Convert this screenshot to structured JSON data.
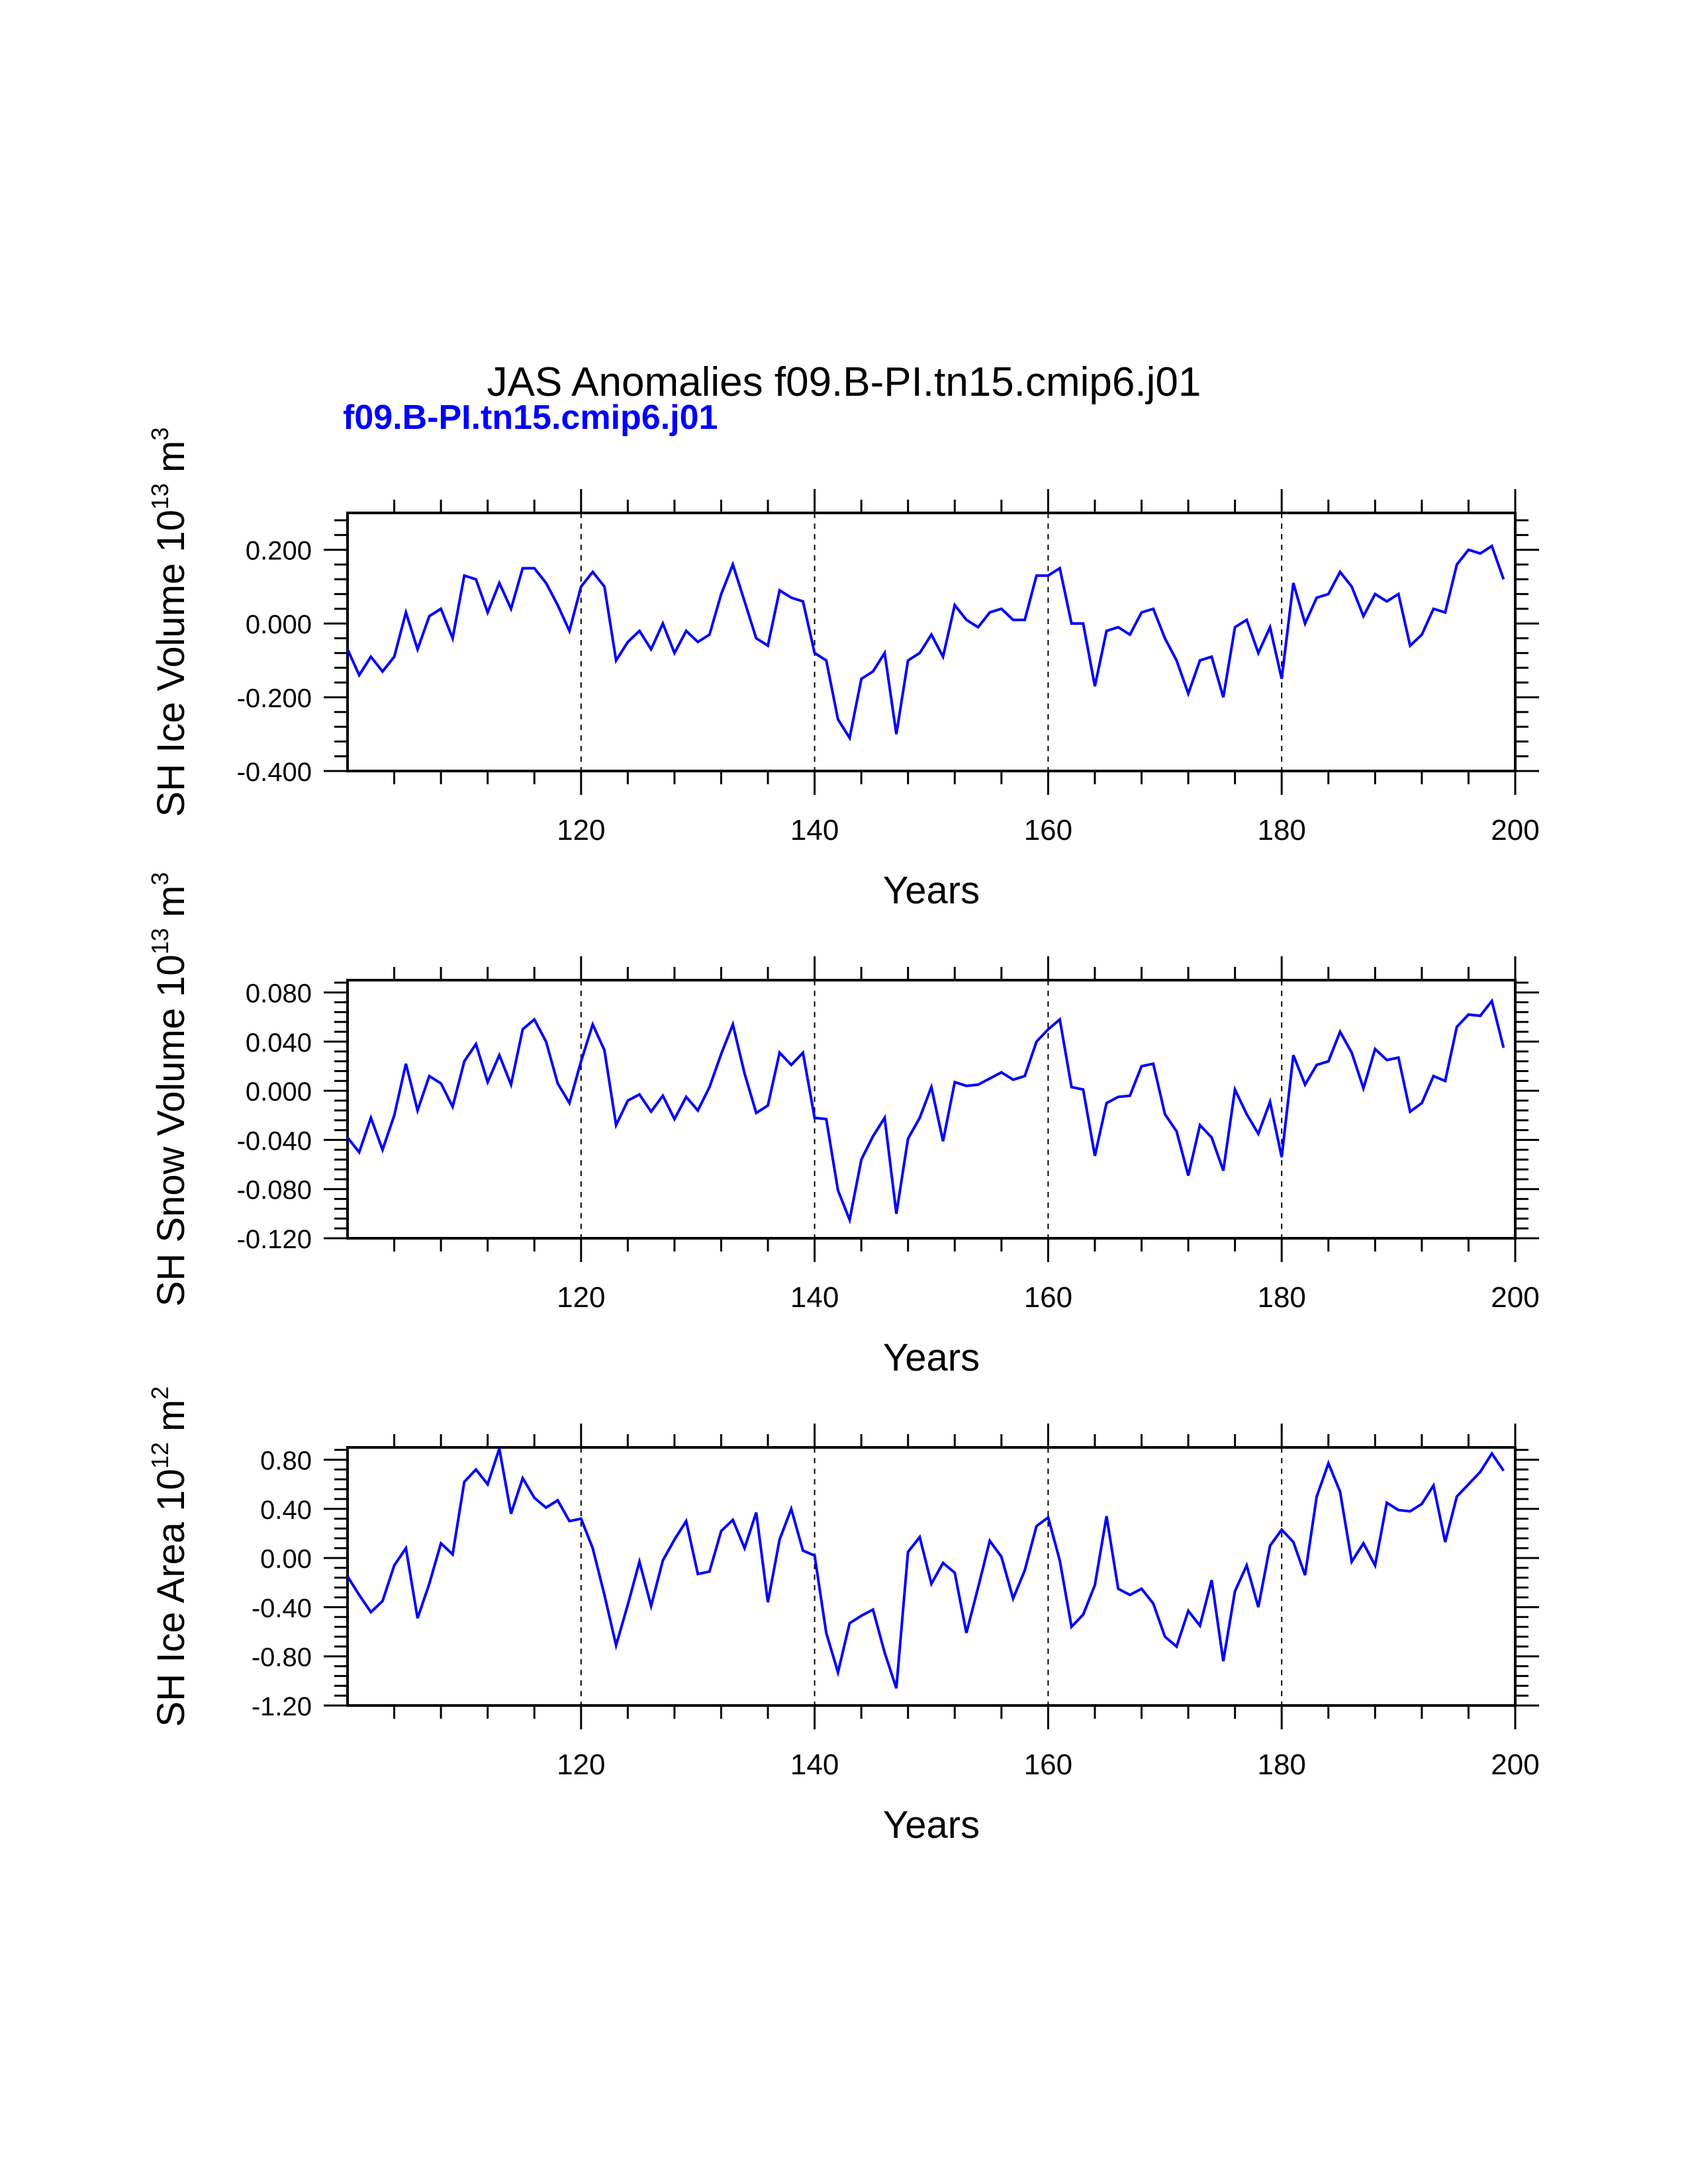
{
  "main_title": "JAS Anomalies f09.B-PI.tn15.cmip6.j01",
  "case_label": "f09.B-PI.tn15.cmip6.j01",
  "colors": {
    "line": "#0000ff",
    "axis": "#000000",
    "case_label": "#0000ff"
  },
  "chart_data": [
    {
      "type": "line",
      "ylabel_main": "SH Ice Volume 10",
      "ylabel_exp": "13",
      "ylabel_unit": " m",
      "ylabel_unit_exp": "3",
      "xlabel": "Years",
      "xlim": [
        100,
        200
      ],
      "ylim": [
        -0.4,
        0.3
      ],
      "yticks": [
        -0.4,
        -0.2,
        0.0,
        0.2
      ],
      "ytick_labels": [
        "-0.400",
        "-0.200",
        "0.000",
        "0.200"
      ],
      "xticks": [
        120,
        140,
        160,
        180,
        200
      ],
      "xtick_labels": [
        "120",
        "140",
        "160",
        "180",
        "200"
      ],
      "grid": "vertical dashed lines at 120, 140, 160, 180",
      "x_start": 100,
      "values": [
        -0.07,
        -0.14,
        -0.09,
        -0.13,
        -0.09,
        0.03,
        -0.07,
        0.02,
        0.04,
        -0.04,
        0.13,
        0.12,
        0.03,
        0.11,
        0.04,
        0.15,
        0.15,
        0.11,
        0.05,
        -0.02,
        0.1,
        0.14,
        0.1,
        -0.1,
        -0.05,
        -0.02,
        -0.07,
        0.0,
        -0.08,
        -0.02,
        -0.05,
        -0.03,
        0.08,
        0.16,
        0.06,
        -0.04,
        -0.06,
        0.09,
        0.07,
        0.06,
        -0.08,
        -0.1,
        -0.26,
        -0.31,
        -0.15,
        -0.13,
        -0.08,
        -0.3,
        -0.1,
        -0.08,
        -0.03,
        -0.09,
        0.05,
        0.01,
        -0.01,
        0.03,
        0.04,
        0.01,
        0.01,
        0.13,
        0.13,
        0.15,
        0.0,
        0.0,
        -0.17,
        -0.02,
        -0.01,
        -0.03,
        0.03,
        0.04,
        -0.04,
        -0.1,
        -0.19,
        -0.1,
        -0.09,
        -0.2,
        -0.01,
        0.01,
        -0.08,
        -0.01,
        -0.15,
        0.11,
        0.0,
        0.07,
        0.08,
        0.14,
        0.1,
        0.02,
        0.08,
        0.06,
        0.08,
        -0.06,
        -0.03,
        0.04,
        0.03,
        0.16,
        0.2,
        0.19,
        0.21,
        0.12
      ]
    },
    {
      "type": "line",
      "ylabel_main": "SH Snow Volume 10",
      "ylabel_exp": "13",
      "ylabel_unit": " m",
      "ylabel_unit_exp": "3",
      "xlabel": "Years",
      "xlim": [
        100,
        200
      ],
      "ylim": [
        -0.12,
        0.09
      ],
      "yticks": [
        -0.12,
        -0.08,
        -0.04,
        0.0,
        0.04,
        0.08
      ],
      "ytick_labels": [
        "-0.120",
        "-0.080",
        "-0.040",
        "0.000",
        "0.040",
        "0.080"
      ],
      "xticks": [
        120,
        140,
        160,
        180,
        200
      ],
      "xtick_labels": [
        "120",
        "140",
        "160",
        "180",
        "200"
      ],
      "grid": "vertical dashed lines at 120, 140, 160, 180",
      "x_start": 100,
      "values": [
        -0.038,
        -0.05,
        -0.022,
        -0.048,
        -0.02,
        0.022,
        -0.016,
        0.012,
        0.006,
        -0.013,
        0.024,
        0.038,
        0.007,
        0.029,
        0.005,
        0.05,
        0.058,
        0.04,
        0.006,
        -0.01,
        0.024,
        0.054,
        0.033,
        -0.028,
        -0.008,
        -0.003,
        -0.017,
        -0.004,
        -0.023,
        -0.005,
        -0.016,
        0.003,
        0.03,
        0.054,
        0.014,
        -0.018,
        -0.012,
        0.031,
        0.021,
        0.031,
        -0.022,
        -0.023,
        -0.081,
        -0.105,
        -0.056,
        -0.037,
        -0.022,
        -0.1,
        -0.039,
        -0.022,
        0.003,
        -0.041,
        0.007,
        0.004,
        0.005,
        0.01,
        0.015,
        0.009,
        0.012,
        0.04,
        0.05,
        0.058,
        0.003,
        0.001,
        -0.053,
        -0.01,
        -0.005,
        -0.004,
        0.02,
        0.022,
        -0.019,
        -0.033,
        -0.069,
        -0.028,
        -0.038,
        -0.065,
        0.001,
        -0.019,
        -0.035,
        -0.009,
        -0.054,
        0.029,
        0.005,
        0.021,
        0.024,
        0.048,
        0.031,
        0.002,
        0.034,
        0.025,
        0.027,
        -0.017,
        -0.01,
        0.012,
        0.008,
        0.052,
        0.062,
        0.061,
        0.073,
        0.035
      ]
    },
    {
      "type": "line",
      "ylabel_main": "SH Ice Area 10",
      "ylabel_exp": "12",
      "ylabel_unit": " m",
      "ylabel_unit_exp": "2",
      "xlabel": "Years",
      "xlim": [
        100,
        200
      ],
      "ylim": [
        -1.2,
        0.9
      ],
      "yticks": [
        -1.2,
        -0.8,
        -0.4,
        0.0,
        0.4,
        0.8
      ],
      "ytick_labels": [
        "-1.20",
        "-0.80",
        "-0.40",
        "0.00",
        "0.40",
        "0.80"
      ],
      "xticks": [
        120,
        140,
        160,
        180,
        200
      ],
      "xtick_labels": [
        "120",
        "140",
        "160",
        "180",
        "200"
      ],
      "grid": "vertical dashed lines at 120, 140, 160, 180",
      "x_start": 100,
      "values": [
        -0.15,
        -0.3,
        -0.44,
        -0.35,
        -0.06,
        0.08,
        -0.49,
        -0.21,
        0.12,
        0.03,
        0.62,
        0.72,
        0.6,
        0.89,
        0.36,
        0.65,
        0.49,
        0.41,
        0.47,
        0.3,
        0.32,
        0.08,
        -0.3,
        -0.71,
        -0.38,
        -0.03,
        -0.39,
        -0.02,
        0.15,
        0.3,
        -0.13,
        -0.11,
        0.22,
        0.31,
        0.08,
        0.37,
        -0.36,
        0.15,
        0.4,
        0.06,
        0.02,
        -0.61,
        -0.93,
        -0.53,
        -0.47,
        -0.42,
        -0.77,
        -1.06,
        0.05,
        0.17,
        -0.21,
        -0.04,
        -0.12,
        -0.61,
        -0.24,
        0.14,
        0.01,
        -0.33,
        -0.1,
        0.26,
        0.33,
        -0.02,
        -0.56,
        -0.46,
        -0.22,
        0.34,
        -0.25,
        -0.3,
        -0.25,
        -0.37,
        -0.64,
        -0.72,
        -0.43,
        -0.55,
        -0.18,
        -0.84,
        -0.27,
        -0.06,
        -0.4,
        0.1,
        0.23,
        0.13,
        -0.14,
        0.5,
        0.77,
        0.54,
        -0.03,
        0.12,
        -0.06,
        0.45,
        0.39,
        0.38,
        0.44,
        0.59,
        0.13,
        0.5,
        0.6,
        0.7,
        0.85,
        0.71
      ]
    }
  ]
}
